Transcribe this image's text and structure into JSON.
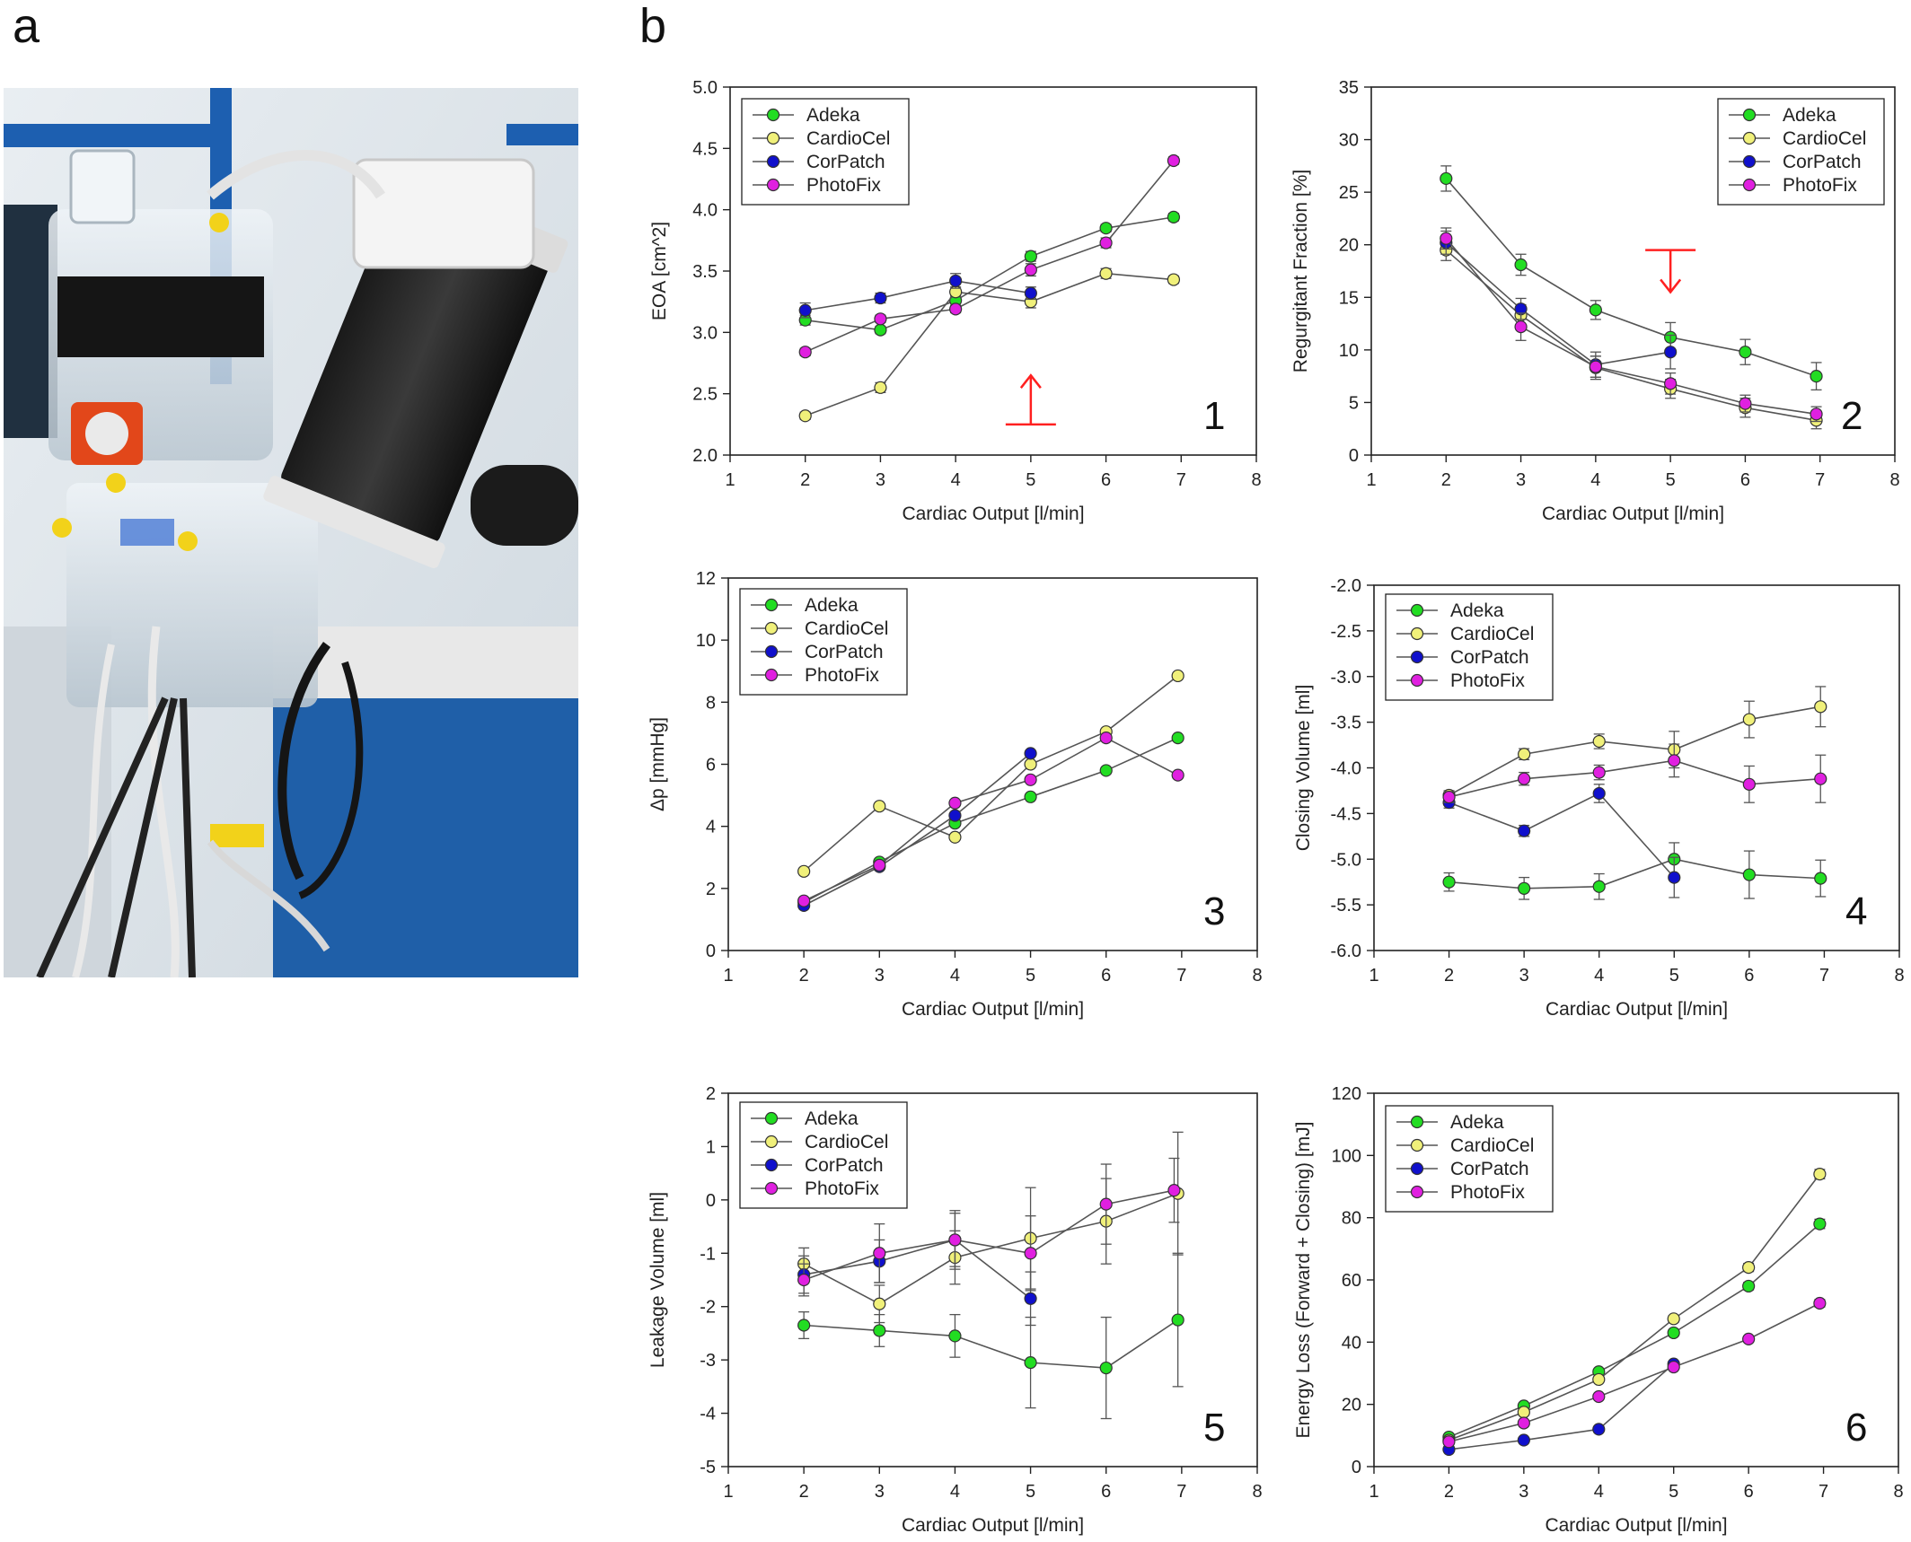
{
  "panels": {
    "a": "a",
    "b": "b"
  },
  "photo": {
    "description_icon": "heart-valve-test-rig-photo"
  },
  "colors": {
    "Adeka": "#22dd22",
    "CardioCel": "#f0f07a",
    "CorPatch": "#1010cc",
    "PhotoFix": "#e020e0",
    "line": "#555555",
    "arrow": "#ff2020"
  },
  "chart_data": [
    {
      "id": "1",
      "type": "line",
      "number_label": "1",
      "xlabel": "Cardiac Output [l/min]",
      "ylabel": "EOA [cm^2]",
      "xlim": [
        1,
        8
      ],
      "ylim": [
        2.0,
        5.0
      ],
      "xticks": [
        "1",
        "2",
        "3",
        "4",
        "5",
        "6",
        "7",
        "8"
      ],
      "yticks": [
        "2.0",
        "2.5",
        "3.0",
        "3.5",
        "4.0",
        "4.5",
        "5.0"
      ],
      "legend": "top-left",
      "arrow": {
        "x": 5,
        "direction": "up",
        "y_from": 2.25,
        "y_to": 2.65
      },
      "series": [
        {
          "name": "Adeka",
          "points": [
            [
              2,
              3.1,
              0.04
            ],
            [
              3,
              3.02,
              0.03
            ],
            [
              4,
              3.26,
              0.04
            ],
            [
              5,
              3.62,
              0.04
            ],
            [
              6,
              3.85,
              0.03
            ],
            [
              6.9,
              3.94,
              0.03
            ]
          ]
        },
        {
          "name": "CardioCel",
          "points": [
            [
              2,
              2.32,
              0.03
            ],
            [
              3,
              2.55,
              0.04
            ],
            [
              4,
              3.33,
              0.04
            ],
            [
              5,
              3.25,
              0.05
            ],
            [
              6,
              3.48,
              0.04
            ],
            [
              6.9,
              3.43,
              0.03
            ]
          ]
        },
        {
          "name": "CorPatch",
          "points": [
            [
              2,
              3.18,
              0.06
            ],
            [
              3,
              3.28,
              0.04
            ],
            [
              4,
              3.42,
              0.06
            ],
            [
              5,
              3.32,
              0.05
            ]
          ]
        },
        {
          "name": "PhotoFix",
          "points": [
            [
              2,
              2.84,
              0.03
            ],
            [
              3,
              3.11,
              0.03
            ],
            [
              4,
              3.19,
              0.03
            ],
            [
              5,
              3.51,
              0.05
            ],
            [
              6,
              3.73,
              0.04
            ],
            [
              6.9,
              4.4,
              0.03
            ]
          ]
        }
      ]
    },
    {
      "id": "2",
      "type": "line",
      "number_label": "2",
      "xlabel": "Cardiac Output [l/min]",
      "ylabel": "Regurgitant Fraction [%]",
      "xlim": [
        1,
        8
      ],
      "ylim": [
        0,
        35
      ],
      "xticks": [
        "1",
        "2",
        "3",
        "4",
        "5",
        "6",
        "7",
        "8"
      ],
      "yticks": [
        "0",
        "5",
        "10",
        "15",
        "20",
        "25",
        "30",
        "35"
      ],
      "legend": "top-right",
      "arrow": {
        "x": 5,
        "direction": "down",
        "y_from": 19.5,
        "y_to": 15.5
      },
      "series": [
        {
          "name": "Adeka",
          "points": [
            [
              2,
              26.3,
              1.2
            ],
            [
              3,
              18.1,
              1.0
            ],
            [
              4,
              13.8,
              0.9
            ],
            [
              5,
              11.2,
              1.4
            ],
            [
              6,
              9.8,
              1.2
            ],
            [
              6.95,
              7.5,
              1.3
            ]
          ]
        },
        {
          "name": "CardioCel",
          "points": [
            [
              2,
              19.5,
              1.0
            ],
            [
              3,
              13.3,
              1.0
            ],
            [
              4,
              8.3,
              1.1
            ],
            [
              5,
              6.3,
              0.9
            ],
            [
              6,
              4.5,
              0.9
            ],
            [
              6.95,
              3.3,
              0.8
            ]
          ]
        },
        {
          "name": "CorPatch",
          "points": [
            [
              2,
              20.2,
              1.1
            ],
            [
              3,
              13.9,
              1.0
            ],
            [
              4,
              8.6,
              1.2
            ],
            [
              5,
              9.8,
              1.6
            ]
          ]
        },
        {
          "name": "PhotoFix",
          "points": [
            [
              2,
              20.6,
              1.0
            ],
            [
              3,
              12.2,
              1.3
            ],
            [
              4,
              8.4,
              1.0
            ],
            [
              5,
              6.8,
              1.0
            ],
            [
              6,
              4.9,
              0.8
            ],
            [
              6.95,
              3.9,
              0.7
            ]
          ]
        }
      ]
    },
    {
      "id": "3",
      "type": "line",
      "number_label": "3",
      "xlabel": "Cardiac Output [l/min]",
      "ylabel": "Δp [mmHg]",
      "xlim": [
        1,
        8
      ],
      "ylim": [
        0,
        12
      ],
      "xticks": [
        "1",
        "2",
        "3",
        "4",
        "5",
        "6",
        "7",
        "8"
      ],
      "yticks": [
        "0",
        "2",
        "4",
        "6",
        "8",
        "10",
        "12"
      ],
      "legend": "top-left",
      "series": [
        {
          "name": "Adeka",
          "points": [
            [
              2,
              1.55,
              0.05
            ],
            [
              3,
              2.85,
              0.05
            ],
            [
              4,
              4.1,
              0.06
            ],
            [
              5,
              4.95,
              0.05
            ],
            [
              6,
              5.8,
              0.05
            ],
            [
              6.95,
              6.85,
              0.06
            ]
          ]
        },
        {
          "name": "CardioCel",
          "points": [
            [
              2,
              2.55,
              0.05
            ],
            [
              3,
              4.65,
              0.05
            ],
            [
              4,
              3.65,
              0.06
            ],
            [
              5,
              6.0,
              0.08
            ],
            [
              6,
              7.05,
              0.08
            ],
            [
              6.95,
              8.85,
              0.08
            ]
          ]
        },
        {
          "name": "CorPatch",
          "points": [
            [
              2,
              1.45,
              0.05
            ],
            [
              3,
              2.7,
              0.05
            ],
            [
              4,
              4.35,
              0.06
            ],
            [
              5,
              6.35,
              0.08
            ]
          ]
        },
        {
          "name": "PhotoFix",
          "points": [
            [
              2,
              1.6,
              0.05
            ],
            [
              3,
              2.75,
              0.05
            ],
            [
              4,
              4.75,
              0.06
            ],
            [
              5,
              5.5,
              0.06
            ],
            [
              6,
              6.85,
              0.06
            ],
            [
              6.95,
              5.65,
              0.05
            ]
          ]
        }
      ]
    },
    {
      "id": "4",
      "type": "line",
      "number_label": "4",
      "xlabel": "Cardiac Output [l/min]",
      "ylabel": "Closing Volume [ml]",
      "xlim": [
        1,
        8
      ],
      "ylim": [
        -6.0,
        -2.0
      ],
      "xticks": [
        "1",
        "2",
        "3",
        "4",
        "5",
        "6",
        "7",
        "8"
      ],
      "yticks": [
        "-6.0",
        "-5.5",
        "-5.0",
        "-4.5",
        "-4.0",
        "-3.5",
        "-3.0",
        "-2.5",
        "-2.0"
      ],
      "legend": "top-left",
      "series": [
        {
          "name": "Adeka",
          "points": [
            [
              2,
              -5.25,
              0.1
            ],
            [
              3,
              -5.32,
              0.12
            ],
            [
              4,
              -5.3,
              0.14
            ],
            [
              5,
              -5.0,
              0.18
            ],
            [
              6,
              -5.17,
              0.26
            ],
            [
              6.95,
              -5.21,
              0.2
            ]
          ]
        },
        {
          "name": "CardioCel",
          "points": [
            [
              2,
              -4.3,
              0.05
            ],
            [
              3,
              -3.85,
              0.06
            ],
            [
              4,
              -3.71,
              0.08
            ],
            [
              5,
              -3.8,
              0.2
            ],
            [
              6,
              -3.47,
              0.2
            ],
            [
              6.95,
              -3.33,
              0.22
            ]
          ]
        },
        {
          "name": "CorPatch",
          "points": [
            [
              2,
              -4.38,
              0.06
            ],
            [
              3,
              -4.69,
              0.06
            ],
            [
              4,
              -4.28,
              0.1
            ],
            [
              5,
              -5.2,
              0.22
            ]
          ]
        },
        {
          "name": "PhotoFix",
          "points": [
            [
              2,
              -4.32,
              0.06
            ],
            [
              3,
              -4.12,
              0.07
            ],
            [
              4,
              -4.05,
              0.08
            ],
            [
              5,
              -3.92,
              0.18
            ],
            [
              6,
              -4.18,
              0.2
            ],
            [
              6.95,
              -4.12,
              0.26
            ]
          ]
        }
      ]
    },
    {
      "id": "5",
      "type": "line",
      "number_label": "5",
      "xlabel": "Cardiac Output [l/min]",
      "ylabel": "Leakage Volume [ml]",
      "xlim": [
        1,
        8
      ],
      "ylim": [
        -5,
        2
      ],
      "xticks": [
        "1",
        "2",
        "3",
        "4",
        "5",
        "6",
        "7",
        "8"
      ],
      "yticks": [
        "-5",
        "-4",
        "-3",
        "-2",
        "-1",
        "0",
        "1",
        "2"
      ],
      "legend": "top-left",
      "series": [
        {
          "name": "Adeka",
          "points": [
            [
              2,
              -2.35,
              0.25
            ],
            [
              3,
              -2.45,
              0.3
            ],
            [
              4,
              -2.55,
              0.4
            ],
            [
              5,
              -3.05,
              0.85
            ],
            [
              6,
              -3.15,
              0.95
            ],
            [
              6.95,
              -2.25,
              1.25
            ]
          ]
        },
        {
          "name": "CardioCel",
          "points": [
            [
              2,
              -1.2,
              0.3
            ],
            [
              3,
              -1.95,
              0.35
            ],
            [
              4,
              -1.08,
              0.5
            ],
            [
              5,
              -0.72,
              0.95
            ],
            [
              6,
              -0.4,
              0.8
            ],
            [
              6.95,
              0.12,
              1.15
            ]
          ]
        },
        {
          "name": "CorPatch",
          "points": [
            [
              2,
              -1.4,
              0.35
            ],
            [
              3,
              -1.15,
              0.4
            ],
            [
              4,
              -0.75,
              0.5
            ],
            [
              5,
              -1.85,
              0.5
            ]
          ]
        },
        {
          "name": "PhotoFix",
          "points": [
            [
              2,
              -1.5,
              0.3
            ],
            [
              3,
              -1.0,
              0.55
            ],
            [
              4,
              -0.75,
              0.55
            ],
            [
              5,
              -1.0,
              0.7
            ],
            [
              6,
              -0.08,
              0.75
            ],
            [
              6.9,
              0.18,
              0.6
            ]
          ]
        }
      ]
    },
    {
      "id": "6",
      "type": "line",
      "number_label": "6",
      "xlabel": "Cardiac Output [l/min]",
      "ylabel": "Energy Loss (Forward + Closing) [mJ]",
      "xlim": [
        1,
        8
      ],
      "ylim": [
        0,
        120
      ],
      "xticks": [
        "1",
        "2",
        "3",
        "4",
        "5",
        "6",
        "7",
        "8"
      ],
      "yticks": [
        "0",
        "20",
        "40",
        "60",
        "80",
        "100",
        "120"
      ],
      "legend": "top-left",
      "series": [
        {
          "name": "Adeka",
          "points": [
            [
              2,
              9.5,
              0.5
            ],
            [
              3,
              19.5,
              0.6
            ],
            [
              4,
              30.5,
              0.8
            ],
            [
              5,
              43.0,
              1.0
            ],
            [
              6,
              58.0,
              1.2
            ],
            [
              6.95,
              78.0,
              1.5
            ]
          ]
        },
        {
          "name": "CardioCel",
          "points": [
            [
              2,
              8.5,
              0.5
            ],
            [
              3,
              17.5,
              0.6
            ],
            [
              4,
              28.0,
              0.8
            ],
            [
              5,
              47.5,
              1.0
            ],
            [
              6,
              64.0,
              1.3
            ],
            [
              6.95,
              94.0,
              1.5
            ]
          ]
        },
        {
          "name": "CorPatch",
          "points": [
            [
              2,
              5.5,
              0.4
            ],
            [
              3,
              8.5,
              0.4
            ],
            [
              4,
              12.0,
              0.5
            ],
            [
              5,
              33.0,
              0.8
            ]
          ]
        },
        {
          "name": "PhotoFix",
          "points": [
            [
              2,
              8.0,
              0.5
            ],
            [
              3,
              14.0,
              0.5
            ],
            [
              4,
              22.5,
              0.6
            ],
            [
              5,
              32.0,
              0.8
            ],
            [
              6,
              41.0,
              0.9
            ],
            [
              6.95,
              52.5,
              1.2
            ]
          ]
        }
      ]
    }
  ]
}
